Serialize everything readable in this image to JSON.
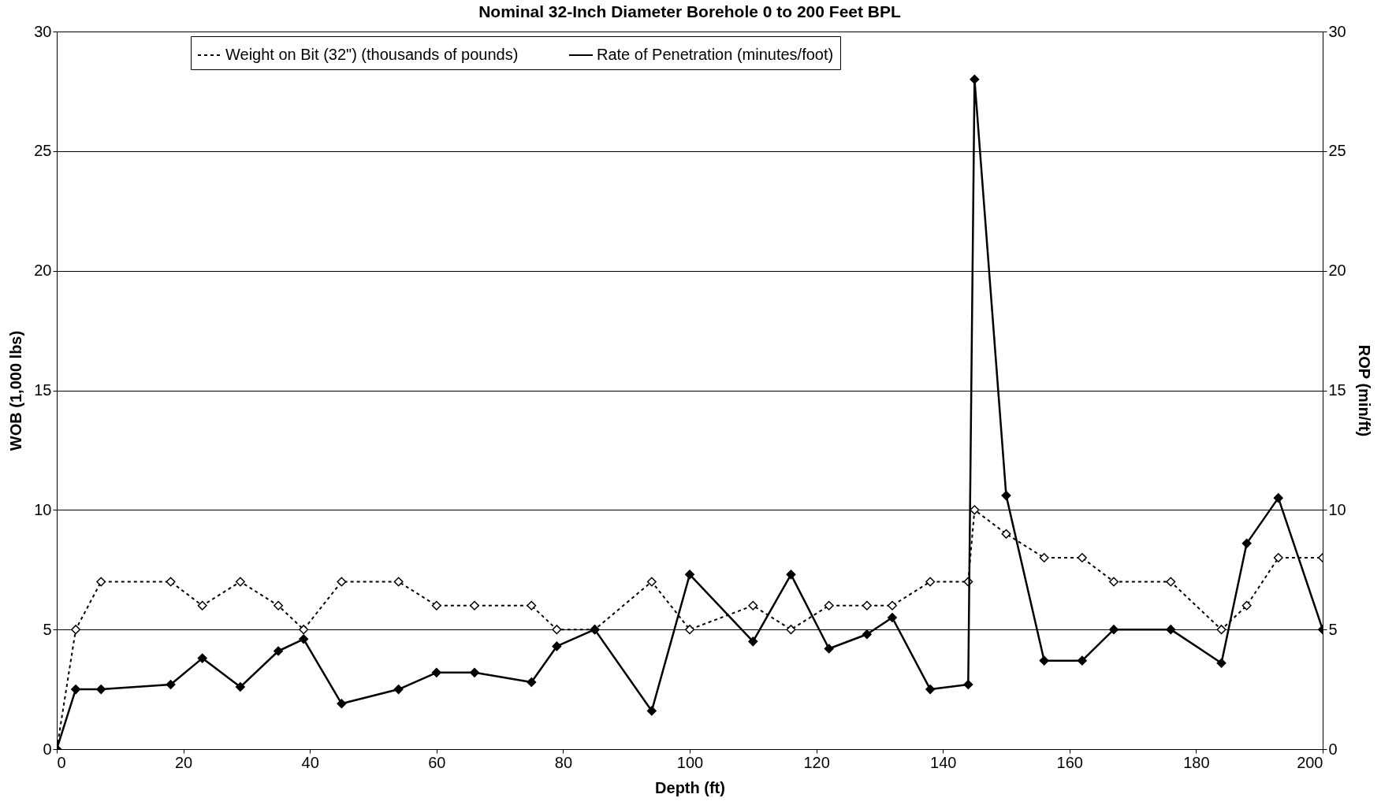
{
  "chart_data": {
    "type": "line",
    "title": "Nominal 32-Inch Diameter Borehole 0 to 200 Feet BPL",
    "xlabel": "Depth (ft)",
    "ylabel": "WOB (1,000 lbs)",
    "y2label": "ROP (min/ft)",
    "x": [
      0,
      3,
      7,
      18,
      23,
      29,
      35,
      39,
      45,
      54,
      60,
      66,
      75,
      79,
      85,
      94,
      100,
      110,
      116,
      122,
      128,
      132,
      138,
      144,
      145,
      150,
      156,
      162,
      167,
      176,
      184,
      188,
      193,
      200
    ],
    "series": [
      {
        "name": "Weight on Bit (32\") (thousands of pounds)",
        "color": "#000000",
        "line_style": "dashed",
        "values": [
          0,
          5,
          7,
          7,
          6,
          7,
          6,
          5,
          7,
          7,
          6,
          6,
          6,
          5,
          5,
          7,
          5,
          6,
          5,
          6,
          6,
          6,
          7,
          7,
          10,
          9,
          8,
          8,
          7,
          7,
          5,
          6,
          8,
          8
        ]
      },
      {
        "name": "Rate of Penetration (minutes/foot)",
        "color": "#000000",
        "line_style": "solid",
        "axis": "y2",
        "values": [
          0,
          2.5,
          2.5,
          2.7,
          3.8,
          2.6,
          4.1,
          4.6,
          1.9,
          2.5,
          3.2,
          3.2,
          2.8,
          4.3,
          5.0,
          1.6,
          7.3,
          4.5,
          7.3,
          4.2,
          4.8,
          5.5,
          2.5,
          2.7,
          28,
          10.6,
          3.7,
          3.7,
          5.0,
          5.0,
          3.6,
          8.6,
          10.5,
          5.0
        ]
      }
    ],
    "xlim": [
      0,
      200
    ],
    "xticks": [
      0,
      20,
      40,
      60,
      80,
      100,
      120,
      140,
      160,
      180,
      200
    ],
    "ylim": [
      0,
      30
    ],
    "yticks": [
      0,
      5,
      10,
      15,
      20,
      25,
      30
    ],
    "y2lim": [
      0,
      30
    ],
    "y2ticks": [
      0,
      5,
      10,
      15,
      20,
      25,
      30
    ],
    "grid": "y",
    "legend": "top",
    "marker": "diamond"
  }
}
